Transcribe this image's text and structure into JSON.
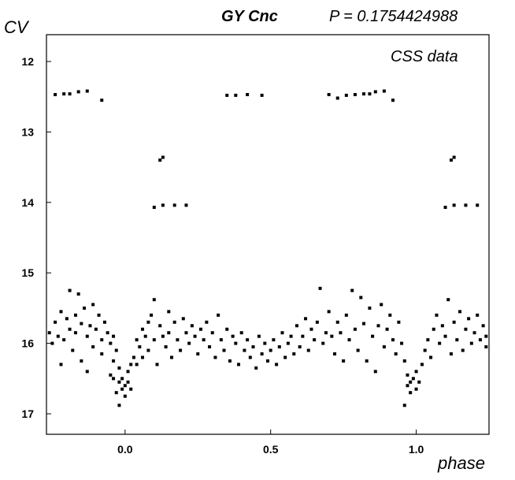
{
  "header": {
    "object": "GY Cnc",
    "period": "P = 0.1754424988"
  },
  "annotation": "CSS data",
  "chart_data": {
    "type": "scatter",
    "title": "GY Cnc",
    "subtitle": "P = 0.1754424988",
    "xlabel": "phase",
    "ylabel": "CV",
    "xlim": [
      -0.27,
      1.25
    ],
    "ylim": [
      12,
      17
    ],
    "y_inverted": true,
    "xticks": [
      0.0,
      0.5,
      1.0
    ],
    "xtick_labels": [
      "0.0",
      "0.5",
      "1.0"
    ],
    "yticks": [
      12,
      13,
      14,
      15,
      16,
      17
    ],
    "ytick_labels": [
      "12",
      "13",
      "14",
      "15",
      "16",
      "17"
    ],
    "grid": false,
    "marker_color": "#000000",
    "series": [
      {
        "points": [
          [
            -0.24,
            12.47
          ],
          [
            -0.21,
            12.46
          ],
          [
            -0.19,
            12.46
          ],
          [
            -0.16,
            12.43
          ],
          [
            -0.13,
            12.42
          ],
          [
            -0.08,
            12.55
          ],
          [
            0.12,
            13.4
          ],
          [
            0.13,
            13.36
          ],
          [
            0.1,
            14.07
          ],
          [
            0.13,
            14.04
          ],
          [
            0.17,
            14.04
          ],
          [
            0.21,
            14.04
          ],
          [
            0.35,
            12.48
          ],
          [
            0.38,
            12.48
          ],
          [
            0.42,
            12.47
          ],
          [
            0.47,
            12.48
          ],
          [
            0.7,
            12.47
          ],
          [
            0.73,
            12.52
          ],
          [
            0.76,
            12.48
          ],
          [
            0.79,
            12.47
          ],
          [
            0.82,
            12.46
          ],
          [
            0.84,
            12.46
          ],
          [
            0.86,
            12.43
          ],
          [
            0.89,
            12.42
          ],
          [
            0.92,
            12.55
          ],
          [
            1.12,
            13.4
          ],
          [
            1.13,
            13.36
          ],
          [
            1.1,
            14.07
          ],
          [
            1.13,
            14.04
          ],
          [
            1.17,
            14.04
          ],
          [
            1.21,
            14.04
          ],
          [
            -0.26,
            15.85
          ],
          [
            -0.25,
            16.0
          ],
          [
            -0.24,
            15.7
          ],
          [
            -0.23,
            15.9
          ],
          [
            -0.22,
            15.55
          ],
          [
            -0.22,
            16.3
          ],
          [
            -0.21,
            15.95
          ],
          [
            -0.2,
            15.65
          ],
          [
            -0.19,
            15.25
          ],
          [
            -0.19,
            15.8
          ],
          [
            -0.18,
            16.1
          ],
          [
            -0.17,
            15.6
          ],
          [
            -0.17,
            15.85
          ],
          [
            -0.16,
            15.3
          ],
          [
            -0.15,
            15.72
          ],
          [
            -0.15,
            16.25
          ],
          [
            -0.14,
            15.5
          ],
          [
            -0.13,
            15.9
          ],
          [
            -0.13,
            16.4
          ],
          [
            -0.12,
            15.75
          ],
          [
            -0.11,
            15.45
          ],
          [
            -0.11,
            16.05
          ],
          [
            -0.1,
            15.8
          ],
          [
            -0.09,
            15.6
          ],
          [
            -0.08,
            15.95
          ],
          [
            -0.08,
            16.15
          ],
          [
            -0.07,
            15.7
          ],
          [
            -0.06,
            15.85
          ],
          [
            -0.05,
            16.0
          ],
          [
            -0.04,
            15.9
          ],
          [
            -0.04,
            16.25
          ],
          [
            -0.03,
            16.1
          ],
          [
            -0.02,
            16.55
          ],
          [
            -0.02,
            16.35
          ],
          [
            -0.01,
            16.65
          ],
          [
            -0.01,
            16.5
          ],
          [
            0.0,
            16.6
          ],
          [
            0.0,
            16.75
          ],
          [
            0.01,
            16.55
          ],
          [
            0.01,
            16.4
          ],
          [
            -0.03,
            16.7
          ],
          [
            -0.04,
            16.5
          ],
          [
            0.02,
            16.3
          ],
          [
            -0.02,
            16.88
          ],
          [
            0.02,
            16.65
          ],
          [
            -0.05,
            16.45
          ],
          [
            0.03,
            16.2
          ],
          [
            0.04,
            15.95
          ],
          [
            0.04,
            16.3
          ],
          [
            0.05,
            16.05
          ],
          [
            0.06,
            15.8
          ],
          [
            0.06,
            16.2
          ],
          [
            0.07,
            15.9
          ],
          [
            0.08,
            15.7
          ],
          [
            0.08,
            16.1
          ],
          [
            0.09,
            15.6
          ],
          [
            0.1,
            15.95
          ],
          [
            0.1,
            15.38
          ],
          [
            0.11,
            16.3
          ],
          [
            0.12,
            15.75
          ],
          [
            0.13,
            15.9
          ],
          [
            0.14,
            16.05
          ],
          [
            0.15,
            15.55
          ],
          [
            0.15,
            15.85
          ],
          [
            0.16,
            16.2
          ],
          [
            0.17,
            15.7
          ],
          [
            0.18,
            15.95
          ],
          [
            0.19,
            16.1
          ],
          [
            0.2,
            15.65
          ],
          [
            0.21,
            15.85
          ],
          [
            0.22,
            16.0
          ],
          [
            0.23,
            15.75
          ],
          [
            0.24,
            15.9
          ],
          [
            0.25,
            16.15
          ],
          [
            0.26,
            15.8
          ],
          [
            0.27,
            15.95
          ],
          [
            0.28,
            15.7
          ],
          [
            0.29,
            16.05
          ],
          [
            0.3,
            15.85
          ],
          [
            0.31,
            16.2
          ],
          [
            0.32,
            15.6
          ],
          [
            0.33,
            15.95
          ],
          [
            0.34,
            16.1
          ],
          [
            0.35,
            15.8
          ],
          [
            0.36,
            16.25
          ],
          [
            0.37,
            15.9
          ],
          [
            0.38,
            16.0
          ],
          [
            0.39,
            16.3
          ],
          [
            0.4,
            15.85
          ],
          [
            0.41,
            16.1
          ],
          [
            0.42,
            15.95
          ],
          [
            0.43,
            16.2
          ],
          [
            0.44,
            16.05
          ],
          [
            0.45,
            16.35
          ],
          [
            0.46,
            15.9
          ],
          [
            0.47,
            16.15
          ],
          [
            0.48,
            16.0
          ],
          [
            0.49,
            16.25
          ],
          [
            0.5,
            16.1
          ],
          [
            0.51,
            15.95
          ],
          [
            0.52,
            16.3
          ],
          [
            0.53,
            16.05
          ],
          [
            0.54,
            15.85
          ],
          [
            0.55,
            16.2
          ],
          [
            0.56,
            16.0
          ],
          [
            0.57,
            15.9
          ],
          [
            0.58,
            16.15
          ],
          [
            0.59,
            15.75
          ],
          [
            0.6,
            16.05
          ],
          [
            0.61,
            15.9
          ],
          [
            0.62,
            15.65
          ],
          [
            0.63,
            16.1
          ],
          [
            0.64,
            15.8
          ],
          [
            0.65,
            15.95
          ],
          [
            0.66,
            15.7
          ],
          [
            0.67,
            15.22
          ],
          [
            0.68,
            16.0
          ],
          [
            0.69,
            15.85
          ],
          [
            0.7,
            15.55
          ],
          [
            0.71,
            15.9
          ],
          [
            0.72,
            16.15
          ],
          [
            0.73,
            15.7
          ],
          [
            0.74,
            15.85
          ],
          [
            0.75,
            16.25
          ],
          [
            0.76,
            15.6
          ],
          [
            0.77,
            15.95
          ],
          [
            0.78,
            15.25
          ],
          [
            0.79,
            15.8
          ],
          [
            0.8,
            16.1
          ],
          [
            0.81,
            15.35
          ],
          [
            0.82,
            15.72
          ],
          [
            0.83,
            16.25
          ],
          [
            0.84,
            15.5
          ],
          [
            0.85,
            15.9
          ],
          [
            0.86,
            16.4
          ],
          [
            0.87,
            15.75
          ],
          [
            0.88,
            15.45
          ],
          [
            0.89,
            16.05
          ],
          [
            0.9,
            15.8
          ],
          [
            0.91,
            15.6
          ],
          [
            0.92,
            15.95
          ],
          [
            0.93,
            16.15
          ],
          [
            0.94,
            15.7
          ],
          [
            0.95,
            16.0
          ],
          [
            0.96,
            16.25
          ],
          [
            0.97,
            16.45
          ],
          [
            0.97,
            16.6
          ],
          [
            0.98,
            16.55
          ],
          [
            0.98,
            16.7
          ],
          [
            0.99,
            16.5
          ],
          [
            1.0,
            16.65
          ],
          [
            1.0,
            16.4
          ],
          [
            0.96,
            16.88
          ],
          [
            1.01,
            16.55
          ],
          [
            1.02,
            16.3
          ],
          [
            1.03,
            16.1
          ],
          [
            1.04,
            15.95
          ],
          [
            1.05,
            16.2
          ],
          [
            1.06,
            15.8
          ],
          [
            1.07,
            15.6
          ],
          [
            1.08,
            16.0
          ],
          [
            1.09,
            15.75
          ],
          [
            1.1,
            15.9
          ],
          [
            1.11,
            15.38
          ],
          [
            1.12,
            16.15
          ],
          [
            1.13,
            15.7
          ],
          [
            1.14,
            15.95
          ],
          [
            1.15,
            15.55
          ],
          [
            1.16,
            16.1
          ],
          [
            1.17,
            15.8
          ],
          [
            1.18,
            15.65
          ],
          [
            1.19,
            16.0
          ],
          [
            1.2,
            15.85
          ],
          [
            1.21,
            15.6
          ],
          [
            1.22,
            15.95
          ],
          [
            1.23,
            15.75
          ],
          [
            1.24,
            16.05
          ],
          [
            1.24,
            15.9
          ]
        ]
      }
    ]
  }
}
